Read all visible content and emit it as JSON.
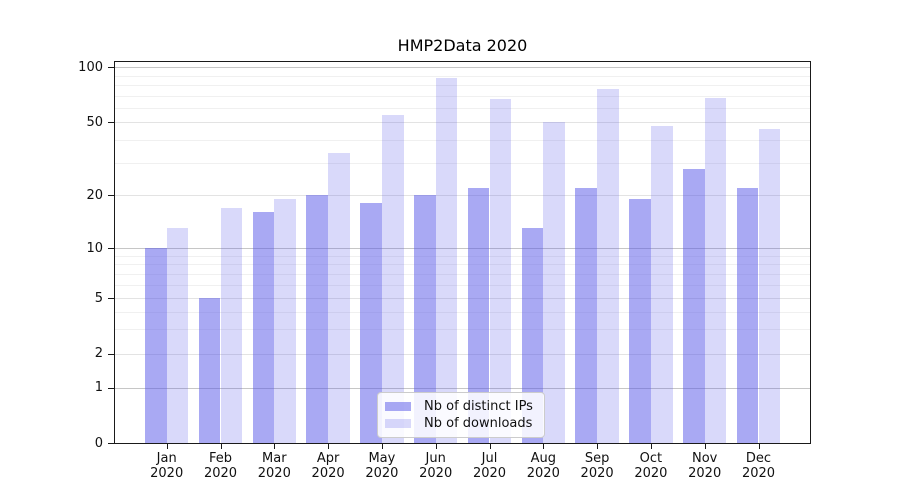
{
  "title": "HMP2Data 2020",
  "chart_data": {
    "type": "bar",
    "title": "HMP2Data 2020",
    "categories": [
      "Jan 2020",
      "Feb 2020",
      "Mar 2020",
      "Apr 2020",
      "May 2020",
      "Jun 2020",
      "Jul 2020",
      "Aug 2020",
      "Sep 2020",
      "Oct 2020",
      "Nov 2020",
      "Dec 2020"
    ],
    "months": [
      "Jan",
      "Feb",
      "Mar",
      "Apr",
      "May",
      "Jun",
      "Jul",
      "Aug",
      "Sep",
      "Oct",
      "Nov",
      "Dec"
    ],
    "year_label": "2020",
    "series": [
      {
        "name": "Nb of distinct IPs",
        "color": "rgba(84,84,232,0.5)",
        "values": [
          10,
          5,
          16,
          20,
          18,
          20,
          22,
          13,
          22,
          19,
          28,
          22
        ]
      },
      {
        "name": "Nb of downloads",
        "color": "rgba(84,84,232,0.22)",
        "values": [
          13,
          17,
          19,
          34,
          55,
          88,
          67,
          50,
          76,
          48,
          68,
          46
        ]
      }
    ],
    "y_axis": {
      "scale": "symlog",
      "ticks": [
        0,
        1,
        2,
        5,
        10,
        20,
        50,
        100
      ],
      "minor_ticks": [
        3,
        4,
        6,
        7,
        8,
        9,
        30,
        40,
        60,
        70,
        80,
        90
      ],
      "anchors": [
        [
          0,
          0
        ],
        [
          1,
          0.1454
        ],
        [
          2,
          0.235
        ],
        [
          5,
          0.3804
        ],
        [
          10,
          0.5109
        ],
        [
          20,
          0.6501
        ],
        [
          50,
          0.8415
        ],
        [
          100,
          0.986
        ]
      ],
      "ylim": [
        0,
        107
      ]
    },
    "legend": {
      "position": "lower center",
      "items": [
        "Nb of distinct IPs",
        "Nb of downloads"
      ]
    },
    "grid": true
  },
  "colors": {
    "bar_dark": "rgba(84,84,232,0.5)",
    "bar_light": "rgba(84,84,232,0.22)",
    "grid_decade": "#c6c6c6",
    "grid_major": "#e3e3e3",
    "grid_minor": "#f0f0f0",
    "spine": "#1a1a1a",
    "text": "#111111"
  }
}
